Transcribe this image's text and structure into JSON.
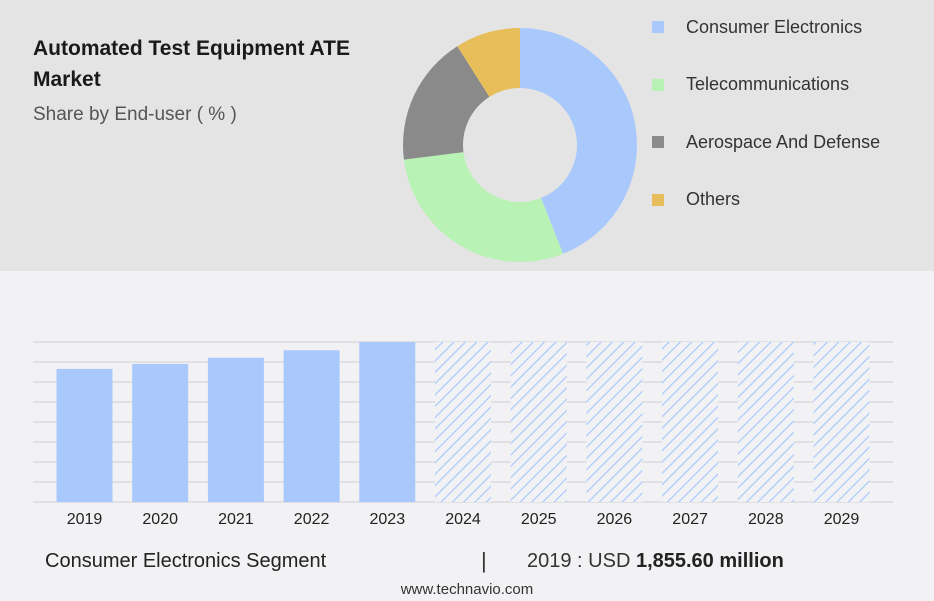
{
  "header": {
    "title": "Automated Test Equipment ATE Market",
    "subtitle": "Share by End-user ( % )"
  },
  "chart_data": [
    {
      "type": "pie",
      "variant": "donut",
      "title": "Automated Test Equipment ATE Market",
      "subtitle": "Share by End-user ( % )",
      "categories": [
        "Consumer Electronics",
        "Telecommunications",
        "Aerospace And Defense",
        "Others"
      ],
      "values": [
        44,
        29,
        18,
        9
      ],
      "colors": [
        "#a9c8fc",
        "#b9f2b5",
        "#8a8a8a",
        "#e8be5a"
      ],
      "legend_position": "right"
    },
    {
      "type": "bar",
      "categories": [
        "2019",
        "2020",
        "2021",
        "2022",
        "2023",
        "2024",
        "2025",
        "2026",
        "2027",
        "2028",
        "2029"
      ],
      "values": [
        1855.6,
        1925,
        2010,
        2115,
        2230,
        null,
        null,
        null,
        null,
        null,
        null
      ],
      "forecast_categories": [
        "2024",
        "2025",
        "2026",
        "2027",
        "2028",
        "2029"
      ],
      "forecast_style": "hatched",
      "bar_color": "#a9c8fc",
      "ylim": [
        0,
        2230
      ],
      "grid": true
    }
  ],
  "footer": {
    "segment": "Consumer Electronics Segment",
    "separator": "|",
    "year_label": "2019 : USD",
    "value": "1,855.60 million",
    "source": "www.technavio.com"
  }
}
